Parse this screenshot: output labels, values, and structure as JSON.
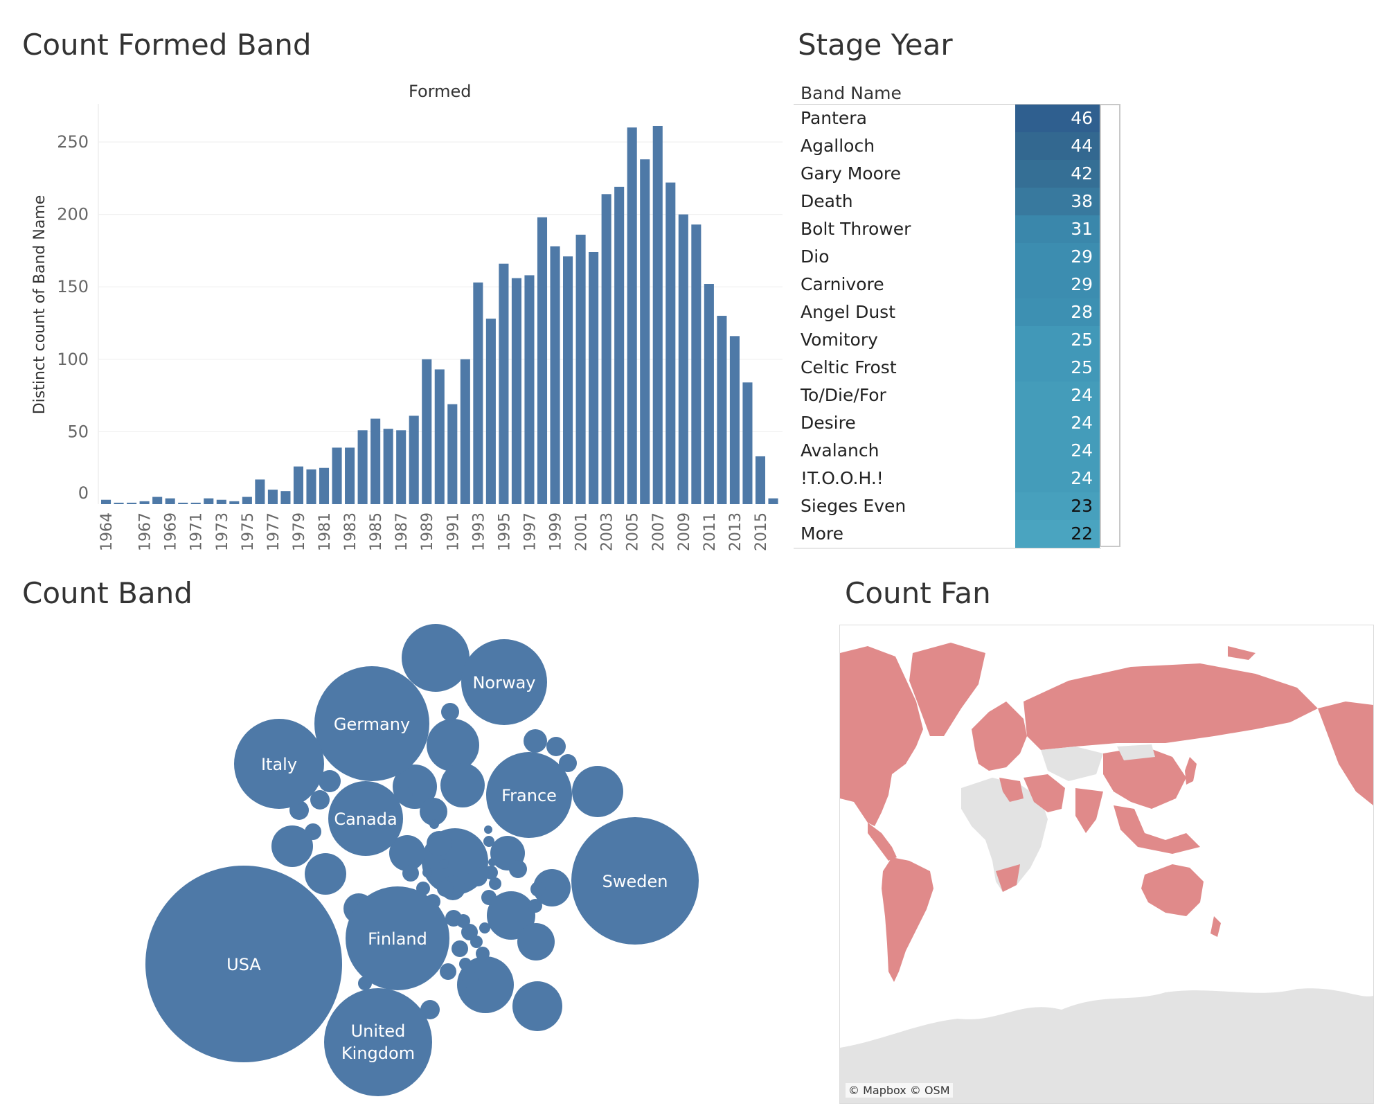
{
  "formed_panel": {
    "title": "Count Formed Band",
    "subtitle": "Formed",
    "ylabel": "Distinct count of Band Name"
  },
  "stage_panel": {
    "title": "Stage Year",
    "column_header": "Band Name"
  },
  "band_panel": {
    "title": "Count Band"
  },
  "fan_panel": {
    "title": "Count Fan",
    "attribution": "© Mapbox © OSM"
  },
  "colors": {
    "bar": "#4e79a7",
    "bubble": "#4e79a7",
    "map_land_with_fans": "#e08a8a",
    "map_land_no_fans": "#e3e3e3",
    "map_ocean": "#ffffff"
  },
  "chart_data": [
    {
      "type": "bar",
      "title": "Count Formed Band",
      "xlabel": "Formed",
      "ylabel": "Distinct count of Band Name",
      "ylim": [
        0,
        280
      ],
      "yticks": [
        0,
        50,
        100,
        150,
        200,
        250
      ],
      "grid": true,
      "x": [
        1964,
        1965,
        1966,
        1967,
        1968,
        1969,
        1970,
        1971,
        1972,
        1973,
        1974,
        1975,
        1976,
        1977,
        1978,
        1979,
        1980,
        1981,
        1982,
        1983,
        1984,
        1985,
        1986,
        1987,
        1988,
        1989,
        1990,
        1991,
        1992,
        1993,
        1994,
        1995,
        1996,
        1997,
        1998,
        1999,
        2000,
        2001,
        2002,
        2003,
        2004,
        2005,
        2006,
        2007,
        2008,
        2009,
        2010,
        2011,
        2012,
        2013,
        2014,
        2015,
        2016
      ],
      "xtick_labels": [
        "1964",
        "1967",
        "1969",
        "1971",
        "1973",
        "1975",
        "1977",
        "1979",
        "1981",
        "1983",
        "1985",
        "1987",
        "1989",
        "1991",
        "1993",
        "1995",
        "1997",
        "1999",
        "2001",
        "2003",
        "2005",
        "2007",
        "2009",
        "2011",
        "2013",
        "2015"
      ],
      "values": [
        3,
        1,
        1,
        2,
        5,
        4,
        1,
        1,
        4,
        3,
        2,
        5,
        17,
        10,
        9,
        26,
        24,
        25,
        39,
        39,
        51,
        59,
        52,
        51,
        61,
        100,
        93,
        69,
        100,
        153,
        128,
        166,
        156,
        158,
        198,
        178,
        171,
        186,
        174,
        214,
        219,
        260,
        238,
        261,
        222,
        200,
        193,
        152,
        130,
        116,
        84,
        33,
        4
      ]
    },
    {
      "type": "table",
      "title": "Stage Year",
      "column": "Band Name",
      "rows": [
        {
          "name": "Pantera",
          "value": "46",
          "color": "#2f5f8f",
          "text": "#ffffff"
        },
        {
          "name": "Agalloch",
          "value": "44",
          "color": "#336890",
          "text": "#ffffff"
        },
        {
          "name": "Gary Moore",
          "value": "42",
          "color": "#356f95",
          "text": "#ffffff"
        },
        {
          "name": "Death",
          "value": "38",
          "color": "#38799e",
          "text": "#ffffff"
        },
        {
          "name": "Bolt Thrower",
          "value": "31",
          "color": "#3a87ab",
          "text": "#ffffff"
        },
        {
          "name": "Dio",
          "value": "29",
          "color": "#3c8db0",
          "text": "#ffffff"
        },
        {
          "name": "Carnivore",
          "value": "29",
          "color": "#3c8db0",
          "text": "#ffffff"
        },
        {
          "name": "Angel Dust",
          "value": "28",
          "color": "#3d90b2",
          "text": "#ffffff"
        },
        {
          "name": "Vomitory",
          "value": "25",
          "color": "#4198b8",
          "text": "#ffffff"
        },
        {
          "name": "Celtic Frost",
          "value": "25",
          "color": "#4198b8",
          "text": "#ffffff"
        },
        {
          "name": "To/Die/For",
          "value": "24",
          "color": "#449cba",
          "text": "#ffffff"
        },
        {
          "name": "Desire",
          "value": "24",
          "color": "#449cba",
          "text": "#ffffff"
        },
        {
          "name": "Avalanch",
          "value": "24",
          "color": "#449cba",
          "text": "#ffffff"
        },
        {
          "name": "!T.O.O.H.!",
          "value": "24",
          "color": "#449cba",
          "text": "#ffffff"
        },
        {
          "name": "Sieges Even",
          "value": "23",
          "color": "#47a0bd",
          "text": "#111111"
        },
        {
          "name": "More",
          "value": "22",
          "color": "#4aa4c0",
          "text": "#111111"
        }
      ]
    },
    {
      "type": "bubble",
      "title": "Count Band",
      "labeled_bubbles": [
        {
          "label": "USA",
          "value": 100
        },
        {
          "label": "Sweden",
          "value": 41
        },
        {
          "label": "Germany",
          "value": 33
        },
        {
          "label": "Finland",
          "value": 27
        },
        {
          "label": "United Kingdom",
          "value": 30
        },
        {
          "label": "Italy",
          "value": 20
        },
        {
          "label": "France",
          "value": 19
        },
        {
          "label": "Norway",
          "value": 19
        },
        {
          "label": "Canada",
          "value": 14
        }
      ],
      "unlabeled_bubble_count": 60
    }
  ]
}
